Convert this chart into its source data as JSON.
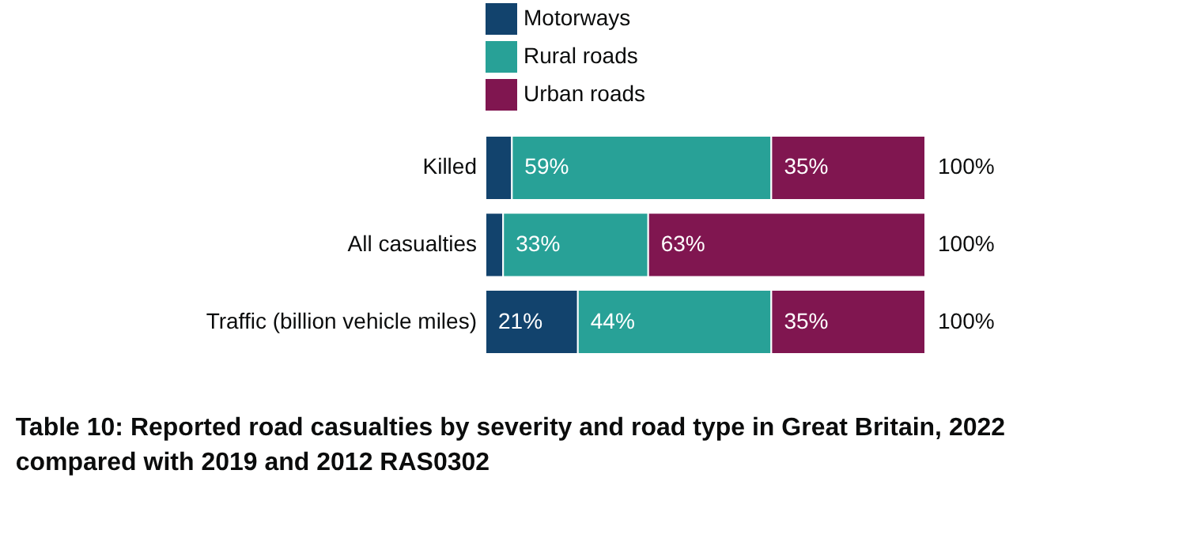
{
  "chart_data": {
    "type": "bar",
    "orientation": "horizontal",
    "stacked": true,
    "title": "Table 10: Reported road casualties by severity and road type in Great Britain, 2022 compared with 2019 and 2012 RAS0302",
    "categories": [
      "Killed",
      "All casualties",
      "Traffic (billion vehicle miles)"
    ],
    "series": [
      {
        "name": "Motorways",
        "color": "#12436d",
        "values": [
          6,
          4,
          21
        ],
        "value_labels": [
          null,
          null,
          "21%"
        ]
      },
      {
        "name": "Rural roads",
        "color": "#28a197",
        "values": [
          59,
          33,
          44
        ],
        "value_labels": [
          "59%",
          "33%",
          "44%"
        ]
      },
      {
        "name": "Urban roads",
        "color": "#801650",
        "values": [
          35,
          63,
          35
        ],
        "value_labels": [
          "35%",
          "63%",
          "35%"
        ]
      }
    ],
    "totals": [
      "100%",
      "100%",
      "100%"
    ],
    "legend": "top left"
  }
}
